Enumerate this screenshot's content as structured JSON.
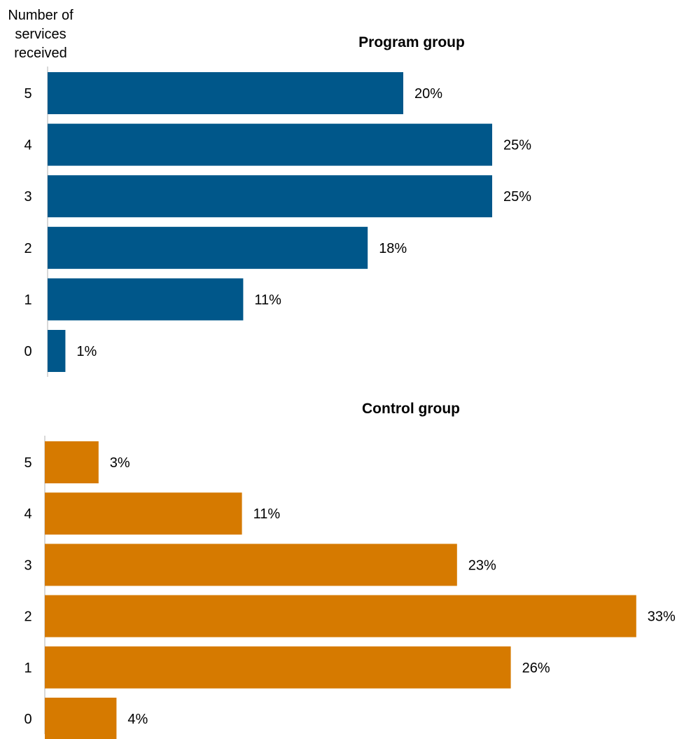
{
  "chart_data": [
    {
      "type": "bar",
      "orientation": "horizontal",
      "title": "Program group",
      "ylabel": [
        "Number of",
        "services",
        "received"
      ],
      "categories": [
        "5",
        "4",
        "3",
        "2",
        "1",
        "0"
      ],
      "values": [
        20,
        25,
        25,
        18,
        11,
        1
      ],
      "value_labels": [
        "20%",
        "25%",
        "25%",
        "18%",
        "11%",
        "1%"
      ],
      "color": "#00578a",
      "xlim": [
        0,
        33
      ],
      "grid": false,
      "legend": "none"
    },
    {
      "type": "bar",
      "orientation": "horizontal",
      "title": "Control group",
      "categories": [
        "5",
        "4",
        "3",
        "2",
        "1",
        "0"
      ],
      "values": [
        3,
        11,
        23,
        33,
        26,
        4
      ],
      "value_labels": [
        "3%",
        "11%",
        "23%",
        "33%",
        "26%",
        "4%"
      ],
      "color": "#d67a00",
      "xlim": [
        0,
        33
      ],
      "grid": false,
      "legend": "none"
    }
  ],
  "axis_color": "#cccccc"
}
